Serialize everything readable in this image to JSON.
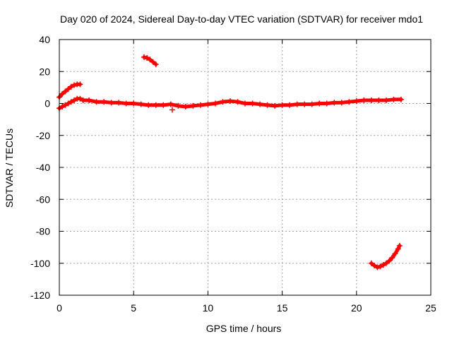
{
  "chart_data": {
    "type": "scatter",
    "title": "Day 020 of 2024, Sidereal Day-to-day VTEC variation (SDTVAR) for receiver mdo1",
    "xlabel": "GPS time / hours",
    "ylabel": "SDTVAR / TECUs",
    "xlim": [
      0,
      25
    ],
    "ylim": [
      -120,
      40
    ],
    "xticks": [
      0,
      5,
      10,
      15,
      20,
      25
    ],
    "yticks": [
      -120,
      -100,
      -80,
      -60,
      -40,
      -20,
      0,
      20,
      40
    ],
    "grid": true,
    "marker": "+",
    "series": [
      {
        "name": "main trace",
        "color": "#ff0000",
        "x": [
          0.0,
          0.2,
          0.4,
          0.6,
          0.8,
          1.0,
          1.2,
          1.4,
          1.6,
          2.0,
          2.5,
          3.0,
          3.5,
          4.0,
          4.5,
          5.0,
          5.5,
          6.0,
          6.5,
          7.0,
          7.5,
          8.0,
          8.5,
          9.0,
          9.5,
          10.0,
          10.5,
          11.0,
          11.5,
          12.0,
          12.5,
          13.0,
          13.5,
          14.0,
          14.5,
          15.0,
          15.5,
          16.0,
          16.5,
          17.0,
          17.5,
          18.0,
          18.5,
          19.0,
          19.5,
          20.0,
          20.5,
          21.0,
          21.5,
          22.0,
          22.5,
          23.0
        ],
        "y": [
          -3,
          -2,
          -1,
          0,
          1,
          2,
          3,
          3,
          2,
          2,
          1,
          1,
          0.5,
          0.5,
          0,
          0,
          -0.5,
          -1,
          -1,
          -1,
          -0.5,
          -1.5,
          -2,
          -1.5,
          -1,
          -0.5,
          0,
          1,
          1.5,
          1,
          0,
          0,
          -0.5,
          -1,
          -1.5,
          -1,
          -1,
          -0.5,
          -0.5,
          -0.5,
          0,
          0,
          0.5,
          0.5,
          1,
          1.5,
          2,
          2,
          2,
          2,
          2.5,
          2.5
        ]
      },
      {
        "name": "early rising arc",
        "color": "#ff0000",
        "x": [
          0.0,
          0.2,
          0.4,
          0.6,
          0.8,
          1.0,
          1.2,
          1.4
        ],
        "y": [
          4,
          6,
          7.5,
          9,
          10.5,
          11.5,
          12,
          12
        ]
      },
      {
        "name": "short segment near hour 6",
        "color": "#ff0000",
        "x": [
          5.7,
          5.9,
          6.1,
          6.3,
          6.5
        ],
        "y": [
          29,
          28.5,
          27.5,
          26,
          24.5
        ]
      },
      {
        "name": "outlier near hour 7.5",
        "color": "#ff0000",
        "x": [
          7.6
        ],
        "y": [
          -4
        ]
      },
      {
        "name": "late deep arc",
        "color": "#ff0000",
        "x": [
          21.0,
          21.2,
          21.4,
          21.6,
          21.8,
          22.0,
          22.2,
          22.4,
          22.6,
          22.8,
          22.9
        ],
        "y": [
          -100,
          -101.5,
          -102.5,
          -102,
          -101,
          -100,
          -98.5,
          -96.5,
          -94,
          -91,
          -89
        ]
      }
    ]
  }
}
